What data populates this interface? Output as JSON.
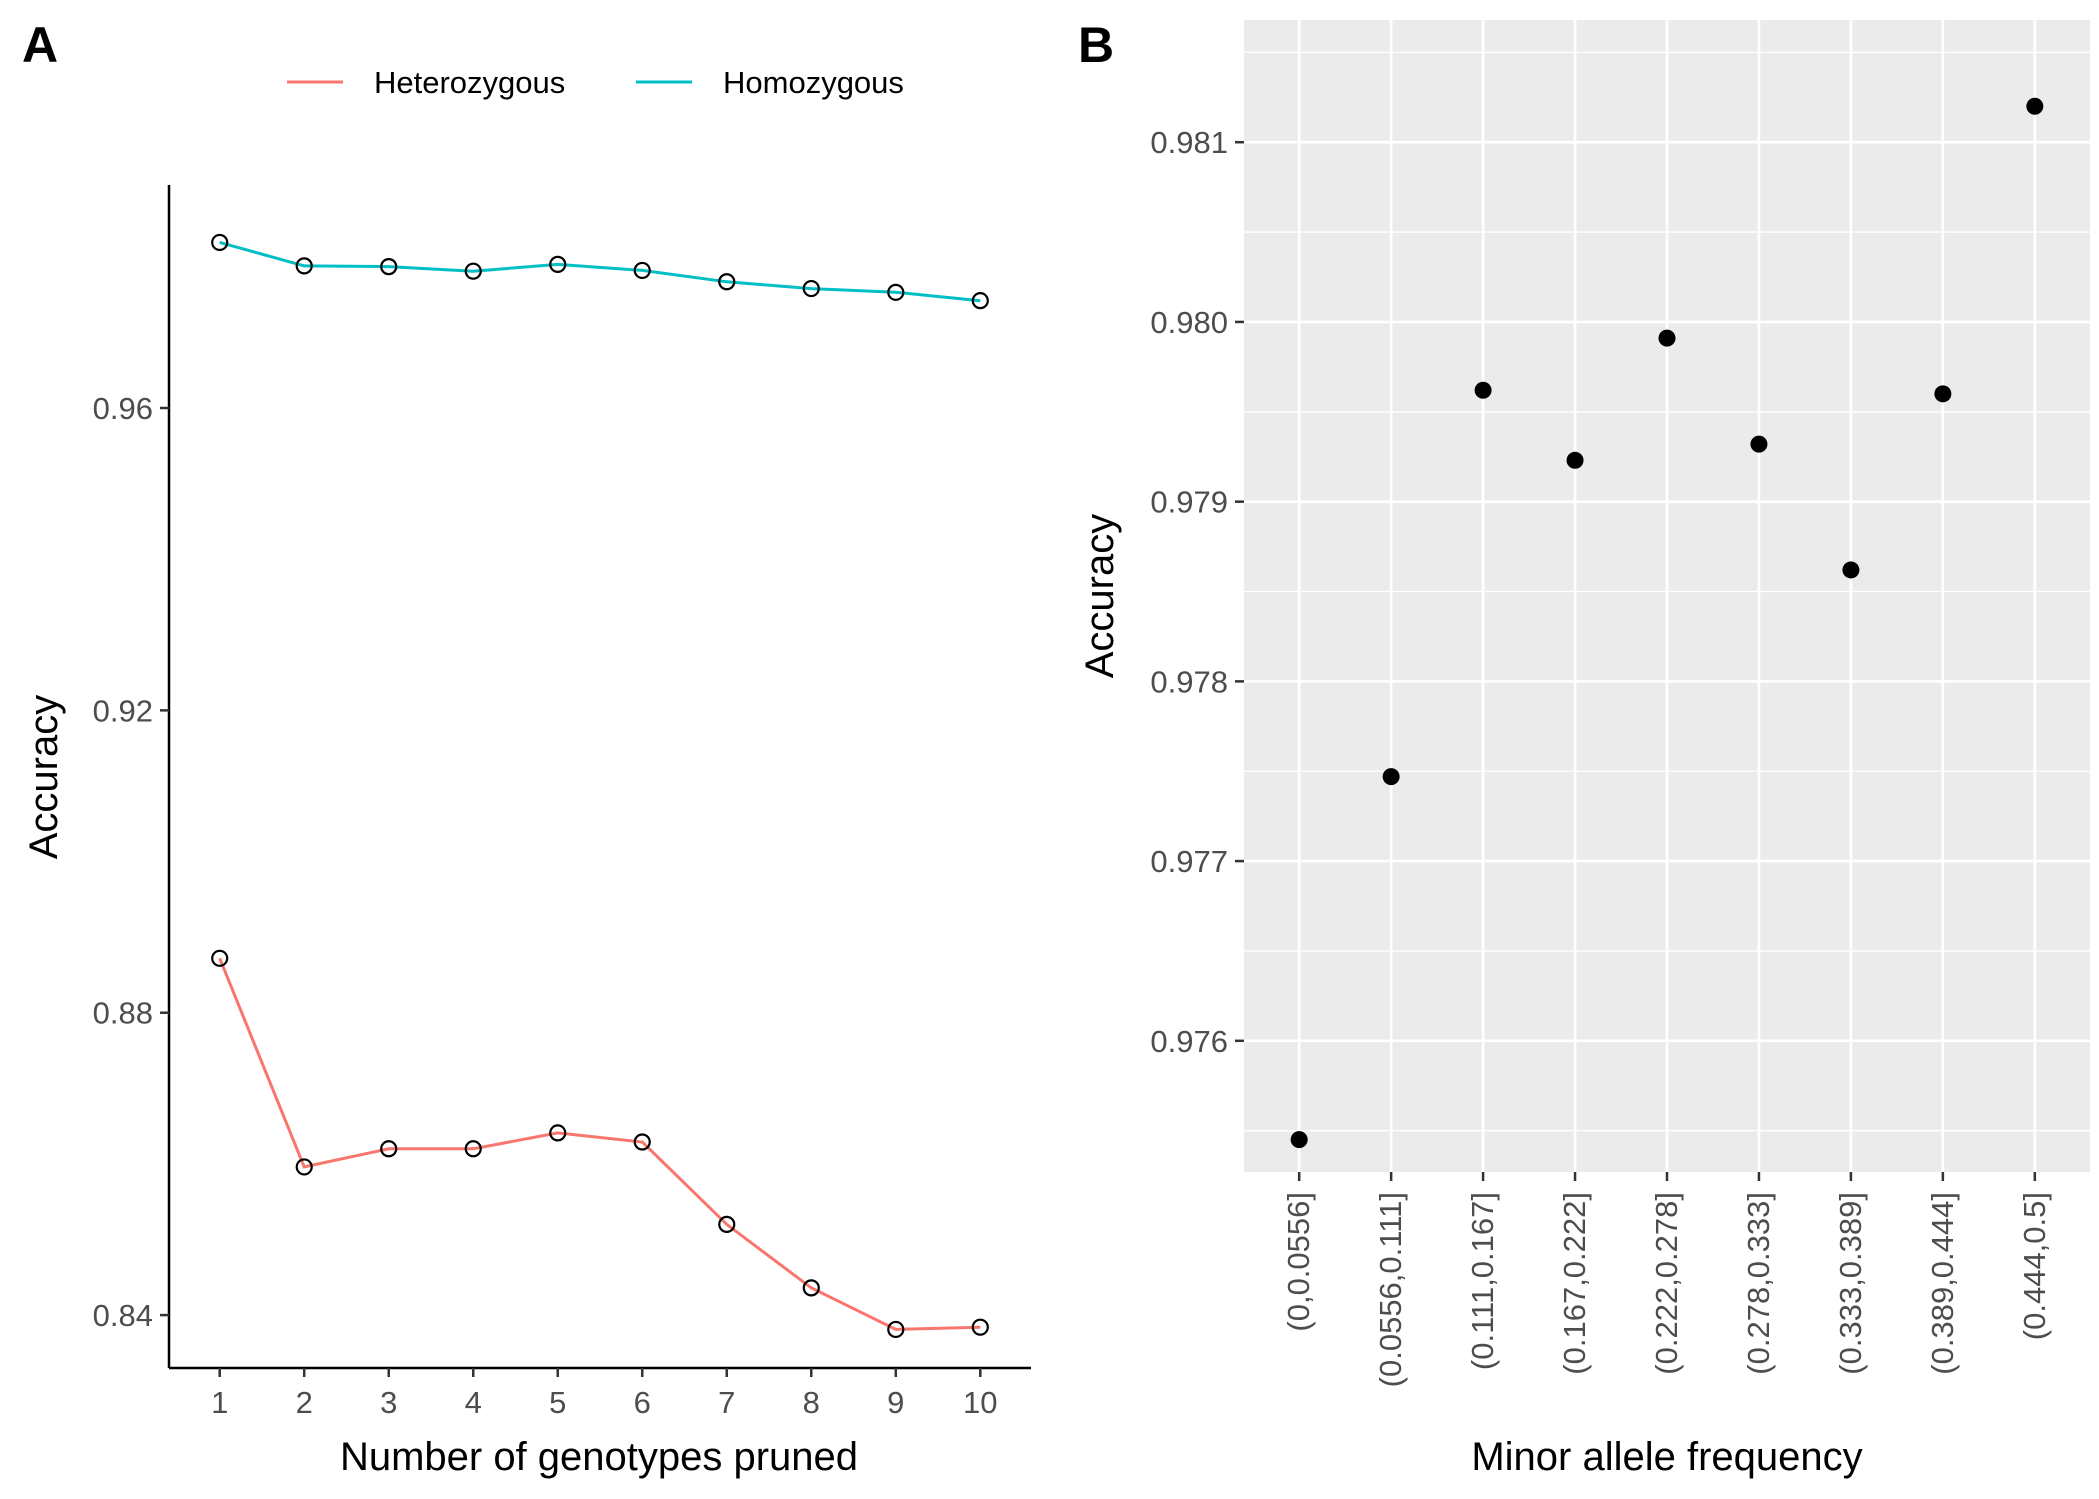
{
  "panels": [
    {
      "letter": "A",
      "colors": {
        "Heterozygous": "#F8766D",
        "Homozygous": "#00BFC4"
      },
      "chart_data": {
        "type": "line",
        "title": "",
        "xlabel": "Number of genotypes pruned",
        "ylabel": "Accuracy",
        "x": [
          1,
          2,
          3,
          4,
          5,
          6,
          7,
          8,
          9,
          10
        ],
        "xticks": [
          "1",
          "2",
          "3",
          "4",
          "5",
          "6",
          "7",
          "8",
          "9",
          "10"
        ],
        "xlim": [
          0.4,
          10.6
        ],
        "yticks": [
          "0.84",
          "0.88",
          "0.92",
          "0.96"
        ],
        "ytick_values": [
          0.84,
          0.88,
          0.92,
          0.96
        ],
        "ylim": [
          0.833,
          0.9895
        ],
        "grid": false,
        "legend_position": "top",
        "markers": "open circles",
        "series": [
          {
            "name": "Heterozygous",
            "values": [
              0.8872,
              0.8596,
              0.862,
              0.862,
              0.8641,
              0.8629,
              0.852,
              0.8436,
              0.8381,
              0.8384
            ]
          },
          {
            "name": "Homozygous",
            "values": [
              0.9819,
              0.9788,
              0.9787,
              0.9781,
              0.979,
              0.9782,
              0.9767,
              0.9758,
              0.9753,
              0.9742
            ]
          }
        ]
      }
    },
    {
      "letter": "B",
      "chart_data": {
        "type": "scatter",
        "title": "",
        "xlabel": "Minor allele frequency",
        "ylabel": "Accuracy",
        "categories": [
          "(0,0.0556]",
          "(0.0556,0.111]",
          "(0.111,0.167]",
          "(0.167,0.222]",
          "(0.222,0.278]",
          "(0.278,0.333]",
          "(0.333,0.389]",
          "(0.389,0.444]",
          "(0.444,0.5]"
        ],
        "values": [
          0.97545,
          0.97747,
          0.97962,
          0.97923,
          0.97991,
          0.97932,
          0.97862,
          0.9796,
          0.9812
        ],
        "yticks": [
          "0.976",
          "0.977",
          "0.978",
          "0.979",
          "0.980",
          "0.981"
        ],
        "ytick_values": [
          0.976,
          0.977,
          0.978,
          0.979,
          0.98,
          0.981
        ],
        "ylim": [
          0.97527,
          0.98168
        ],
        "grid": true,
        "background": "#EBEBEB"
      }
    }
  ]
}
